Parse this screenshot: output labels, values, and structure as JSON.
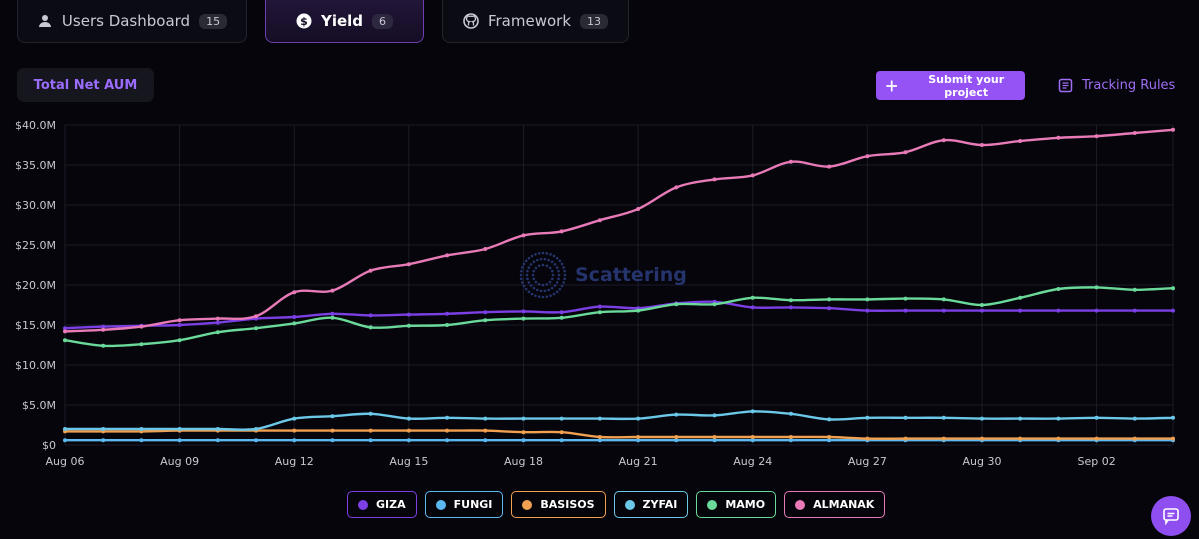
{
  "tabs": [
    {
      "label": "Users Dashboard",
      "count": "15",
      "icon": "user-icon"
    },
    {
      "label": "Yield",
      "count": "6",
      "icon": "dollar-coin-icon"
    },
    {
      "label": "Framework",
      "count": "13",
      "icon": "github-icon"
    }
  ],
  "metric_label": "Total Net AUM",
  "submit_label": "Submit your project",
  "tracking_label": "Tracking Rules",
  "watermark": "Scattering",
  "colors": {
    "accent": "#9553f5",
    "GIZA": "#7b3fe4",
    "FUNGI": "#5bb8f0",
    "BASISOS": "#f0a050",
    "ZYFAI": "#6cc8e8",
    "MAMO": "#6ad99a",
    "ALMANAK": "#e87ab8"
  },
  "chart_data": {
    "type": "line",
    "title": "",
    "xlabel": "",
    "ylabel": "",
    "ylim": [
      0,
      40
    ],
    "y_unit": "$M",
    "y_ticks": [
      "$0",
      "$5.0M",
      "$10.0M",
      "$15.0M",
      "$20.0M",
      "$25.0M",
      "$30.0M",
      "$35.0M",
      "$40.0M"
    ],
    "x": [
      "Aug 06",
      "Aug 07",
      "Aug 08",
      "Aug 09",
      "Aug 10",
      "Aug 11",
      "Aug 12",
      "Aug 13",
      "Aug 14",
      "Aug 15",
      "Aug 16",
      "Aug 17",
      "Aug 18",
      "Aug 19",
      "Aug 20",
      "Aug 21",
      "Aug 22",
      "Aug 23",
      "Aug 24",
      "Aug 25",
      "Aug 26",
      "Aug 27",
      "Aug 28",
      "Aug 29",
      "Aug 30",
      "Aug 31",
      "Sep 01",
      "Sep 02",
      "Sep 03",
      "Sep 04"
    ],
    "x_tick_labels": [
      "Aug 06",
      "Aug 09",
      "Aug 12",
      "Aug 15",
      "Aug 18",
      "Aug 21",
      "Aug 24",
      "Aug 27",
      "Aug 30",
      "Sep 02"
    ],
    "grid": true,
    "legend_position": "bottom-center",
    "series": [
      {
        "name": "GIZA",
        "values": [
          14.6,
          14.8,
          14.9,
          15.0,
          15.3,
          15.8,
          16.0,
          16.4,
          16.2,
          16.3,
          16.4,
          16.6,
          16.7,
          16.6,
          17.3,
          17.1,
          17.7,
          17.9,
          17.2,
          17.2,
          17.1,
          16.8,
          16.8,
          16.8,
          16.8,
          16.8,
          16.8,
          16.8,
          16.8,
          16.8
        ]
      },
      {
        "name": "FUNGI",
        "values": [
          0.6,
          0.6,
          0.6,
          0.6,
          0.6,
          0.6,
          0.6,
          0.6,
          0.6,
          0.6,
          0.6,
          0.6,
          0.6,
          0.6,
          0.6,
          0.6,
          0.6,
          0.6,
          0.6,
          0.6,
          0.6,
          0.6,
          0.6,
          0.6,
          0.6,
          0.6,
          0.6,
          0.6,
          0.6,
          0.6
        ]
      },
      {
        "name": "BASISOS",
        "values": [
          1.7,
          1.7,
          1.7,
          1.8,
          1.8,
          1.8,
          1.8,
          1.8,
          1.8,
          1.8,
          1.8,
          1.8,
          1.6,
          1.6,
          1.0,
          1.0,
          1.0,
          1.0,
          1.0,
          1.0,
          1.0,
          0.8,
          0.8,
          0.8,
          0.8,
          0.8,
          0.8,
          0.8,
          0.8,
          0.8
        ]
      },
      {
        "name": "ZYFAI",
        "values": [
          2.0,
          2.0,
          2.0,
          2.0,
          2.0,
          2.0,
          3.3,
          3.6,
          3.9,
          3.3,
          3.4,
          3.3,
          3.3,
          3.3,
          3.3,
          3.3,
          3.8,
          3.7,
          4.2,
          3.9,
          3.2,
          3.4,
          3.4,
          3.4,
          3.3,
          3.3,
          3.3,
          3.4,
          3.3,
          3.4
        ]
      },
      {
        "name": "MAMO",
        "values": [
          13.1,
          12.4,
          12.6,
          13.1,
          14.1,
          14.6,
          15.2,
          15.9,
          14.7,
          14.9,
          15.0,
          15.6,
          15.8,
          15.9,
          16.6,
          16.8,
          17.6,
          17.6,
          18.4,
          18.1,
          18.2,
          18.2,
          18.3,
          18.2,
          17.5,
          18.4,
          19.5,
          19.7,
          19.4,
          19.6
        ]
      },
      {
        "name": "ALMANAK",
        "values": [
          14.2,
          14.4,
          14.8,
          15.6,
          15.8,
          16.1,
          19.1,
          19.3,
          21.8,
          22.6,
          23.7,
          24.5,
          26.2,
          26.7,
          28.1,
          29.5,
          32.2,
          33.2,
          33.7,
          35.4,
          34.8,
          36.1,
          36.6,
          38.1,
          37.5,
          38.0,
          38.4,
          38.6,
          39.0,
          39.4
        ]
      }
    ]
  }
}
